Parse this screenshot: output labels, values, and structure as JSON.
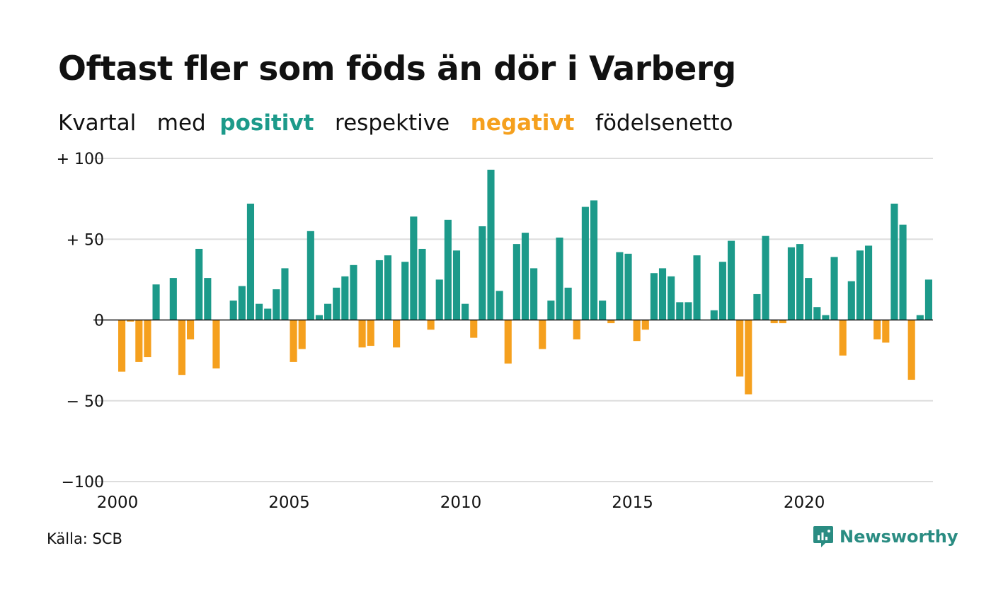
{
  "header": {
    "title": "Oftast fler som föds än dör i Varberg",
    "subtitle_parts": [
      "Kvartal",
      "med",
      "positivt",
      "respektive",
      "negativt",
      "födelsenetto"
    ]
  },
  "footer": {
    "source": "Källa: SCB",
    "brand": "Newsworthy"
  },
  "colors": {
    "positive": "#1c9a8a",
    "negative": "#f5a01e",
    "grid": "#dddddd",
    "brand": "#2a8c82"
  },
  "chart_data": {
    "type": "bar",
    "title": "Oftast fler som föds än dör i Varberg",
    "xlabel": "",
    "ylabel": "",
    "ylim": [
      -100,
      100
    ],
    "y_ticks": [
      100,
      50,
      0,
      -50,
      -100
    ],
    "y_tick_labels": [
      "+ 100",
      "+  50",
      "0",
      "− 50",
      "−100"
    ],
    "x_ticks": [
      2000,
      2005,
      2010,
      2015,
      2020
    ],
    "x_range": [
      2000,
      2023.75
    ],
    "grid": true,
    "categories": [
      "2000K1",
      "2000K2",
      "2000K3",
      "2000K4",
      "2001K1",
      "2001K2",
      "2001K3",
      "2001K4",
      "2002K1",
      "2002K2",
      "2002K3",
      "2002K4",
      "2003K1",
      "2003K2",
      "2003K3",
      "2003K4",
      "2004K1",
      "2004K2",
      "2004K3",
      "2004K4",
      "2005K1",
      "2005K2",
      "2005K3",
      "2005K4",
      "2006K1",
      "2006K2",
      "2006K3",
      "2006K4",
      "2007K1",
      "2007K2",
      "2007K3",
      "2007K4",
      "2008K1",
      "2008K2",
      "2008K3",
      "2008K4",
      "2009K1",
      "2009K2",
      "2009K3",
      "2009K4",
      "2010K1",
      "2010K2",
      "2010K3",
      "2010K4",
      "2011K1",
      "2011K2",
      "2011K3",
      "2011K4",
      "2012K1",
      "2012K2",
      "2012K3",
      "2012K4",
      "2013K1",
      "2013K2",
      "2013K3",
      "2013K4",
      "2014K1",
      "2014K2",
      "2014K3",
      "2014K4",
      "2015K1",
      "2015K2",
      "2015K3",
      "2015K4",
      "2016K1",
      "2016K2",
      "2016K3",
      "2016K4",
      "2017K1",
      "2017K2",
      "2017K3",
      "2017K4",
      "2018K1",
      "2018K2",
      "2018K3",
      "2018K4",
      "2019K1",
      "2019K2",
      "2019K3",
      "2019K4",
      "2020K1",
      "2020K2",
      "2020K3",
      "2020K4",
      "2021K1",
      "2021K2",
      "2021K3",
      "2021K4",
      "2022K1",
      "2022K2",
      "2022K3",
      "2022K4",
      "2023K1",
      "2023K2",
      "2023K3"
    ],
    "values": [
      -32,
      -1,
      -26,
      -23,
      22,
      0,
      26,
      -34,
      -12,
      44,
      26,
      -30,
      0,
      12,
      21,
      72,
      10,
      7,
      19,
      32,
      -26,
      -18,
      55,
      3,
      10,
      20,
      27,
      34,
      -17,
      -16,
      37,
      40,
      -17,
      36,
      64,
      44,
      -6,
      25,
      62,
      43,
      10,
      -11,
      58,
      93,
      18,
      -27,
      47,
      54,
      32,
      -18,
      12,
      51,
      20,
      -12,
      70,
      74,
      12,
      -2,
      42,
      41,
      -13,
      -6,
      29,
      32,
      27,
      11,
      11,
      40,
      0,
      6,
      36,
      49,
      -35,
      -46,
      16,
      52,
      -2,
      -2,
      45,
      47,
      26,
      8,
      3,
      39,
      -22,
      24,
      43,
      46,
      -12,
      -14,
      72,
      59,
      -37,
      3,
      25
    ]
  }
}
